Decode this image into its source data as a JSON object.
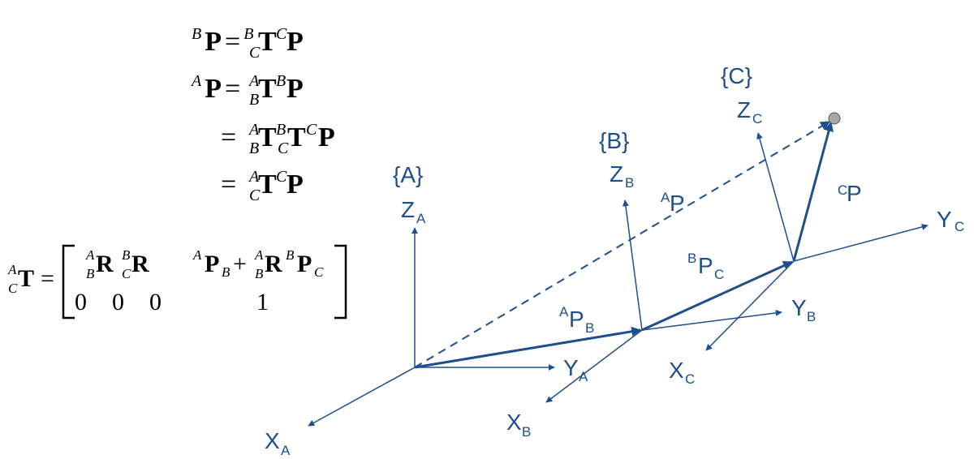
{
  "equations": {
    "eq1": {
      "lhs_sup": "B",
      "lhs": "P",
      "eq": "=",
      "t_sup": "B",
      "t_sub": "C",
      "t": "T",
      "p_sup": "C",
      "p": "P"
    },
    "eq2": {
      "lhs_sup": "A",
      "lhs": "P",
      "eq": "=",
      "t_sup": "A",
      "t_sub": "B",
      "t": "T",
      "p_sup": "B",
      "p": "P"
    },
    "eq3": {
      "eq": "=",
      "t1_sup": "A",
      "t1_sub": "B",
      "t1": "T",
      "t2_sup": "B",
      "t2_sub": "C",
      "t2": "T",
      "p_sup": "C",
      "p": "P"
    },
    "eq4": {
      "eq": "=",
      "t_sup": "A",
      "t_sub": "C",
      "t": "T",
      "p_sup": "C",
      "p": "P"
    }
  },
  "matrix": {
    "lhs_sup": "A",
    "lhs_sub": "C",
    "lhs": "T",
    "eq": "=",
    "r1_sup": "A",
    "r1_sub": "B",
    "r1": "R",
    "r2_sup": "B",
    "r2_sub": "C",
    "r2": "R",
    "p_sup": "A",
    "p": "P",
    "p_sub": "B",
    "plus": "+",
    "r3_sup": "A",
    "r3_sub": "B",
    "r3": "R",
    "p2_sup": "B",
    "p2": "P",
    "p2_sub": "C",
    "zero1": "0",
    "zero2": "0",
    "zero3": "0",
    "one": "1"
  },
  "frames": {
    "A": {
      "name": "{A}",
      "z": "Z",
      "z_sub": "A",
      "y": "Y",
      "y_sub": "A",
      "x": "X",
      "x_sub": "A"
    },
    "B": {
      "name": "{B}",
      "z": "Z",
      "z_sub": "B",
      "y": "Y",
      "y_sub": "B",
      "x": "X",
      "x_sub": "B"
    },
    "C": {
      "name": "{C}",
      "z": "Z",
      "z_sub": "C",
      "y": "Y",
      "y_sub": "C",
      "x": "X",
      "x_sub": "C"
    }
  },
  "vectors": {
    "AP": {
      "sup": "A",
      "main": "P"
    },
    "APB": {
      "main": "P",
      "sup": "A",
      "sub": "B"
    },
    "BPC": {
      "main": "P",
      "sup": "B",
      "sub": "C"
    },
    "CP": {
      "sup": "C",
      "main": "P"
    }
  },
  "colors": {
    "diagram": "#1f4e8c",
    "point_fill": "#a6a6a6",
    "text": "#000000"
  }
}
